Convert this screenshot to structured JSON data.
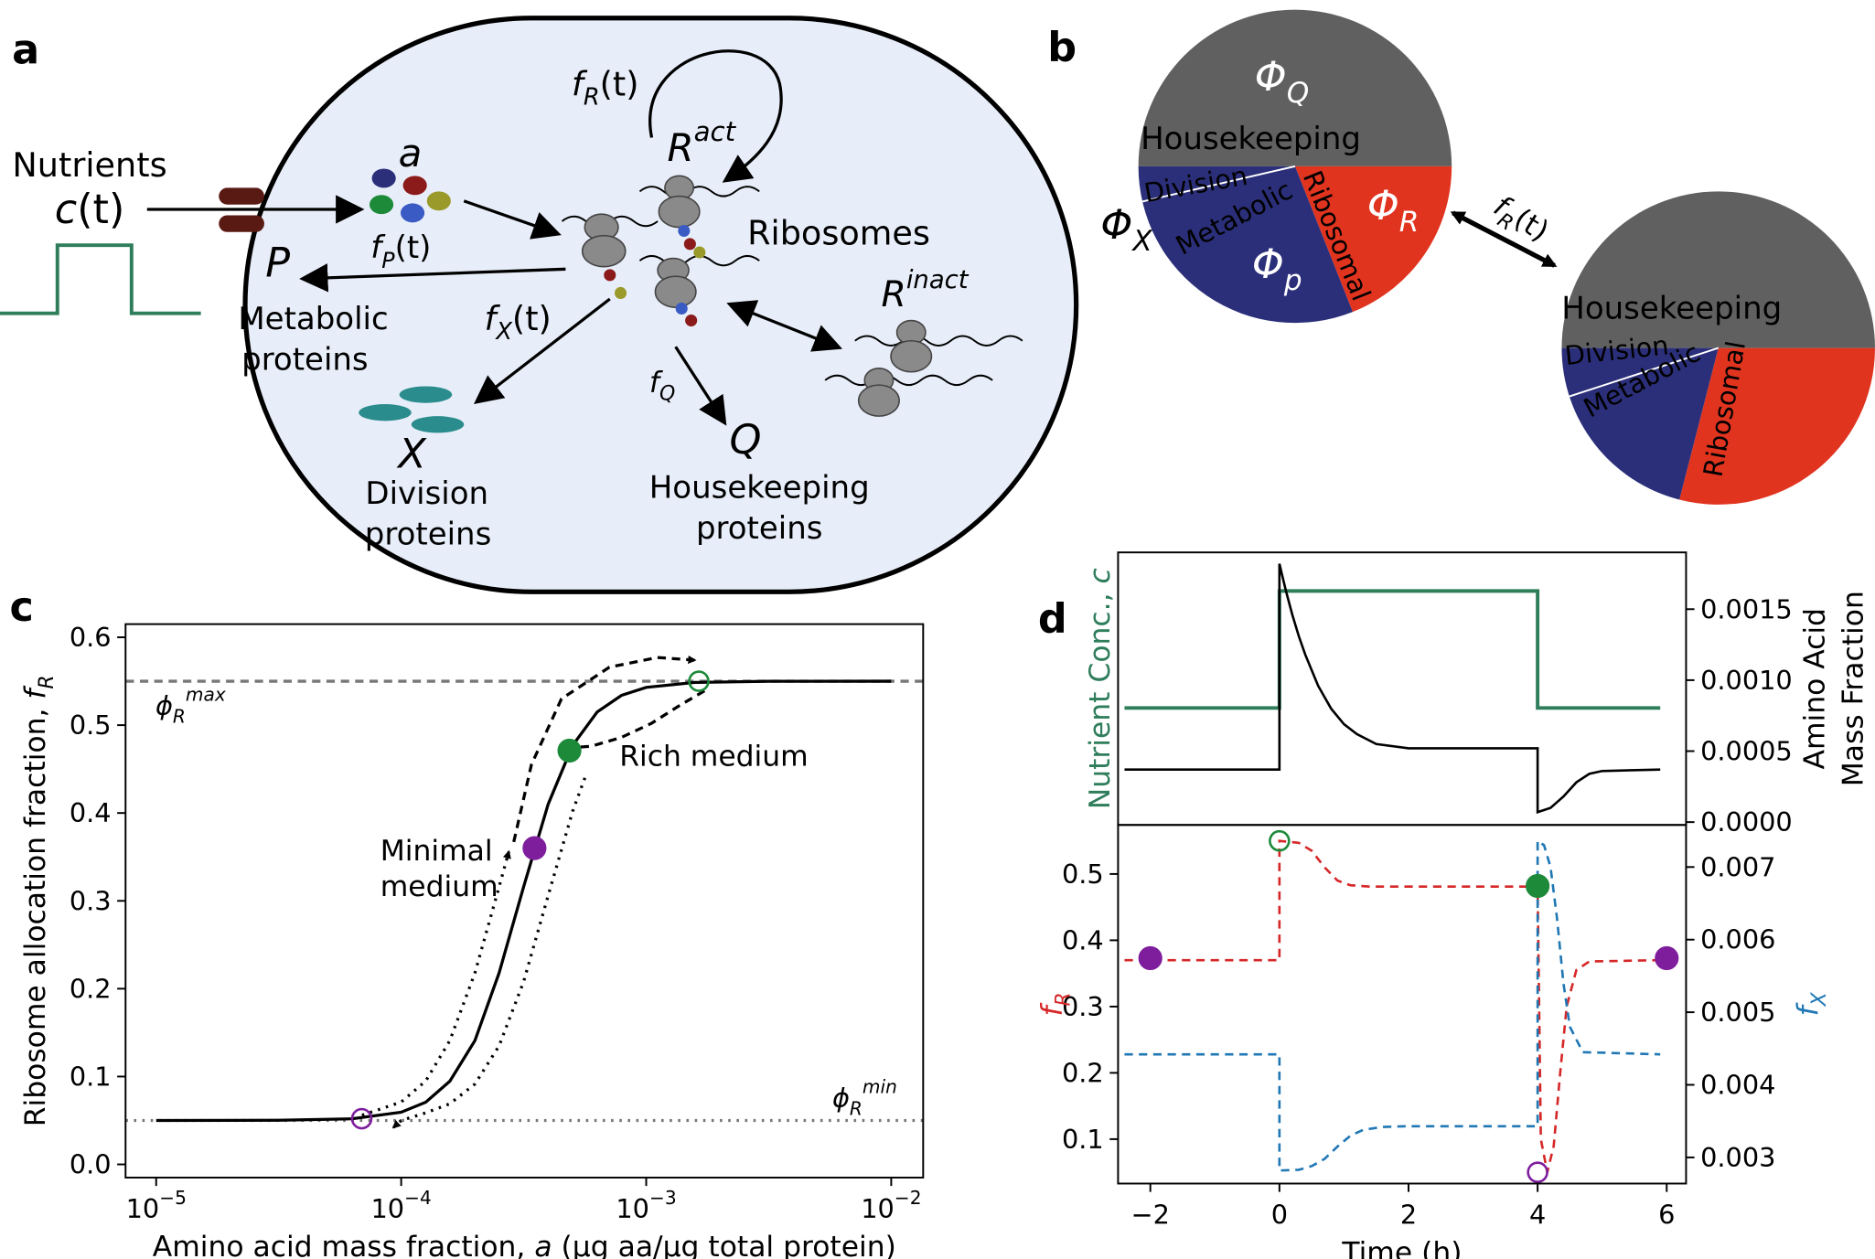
{
  "panel_labels": [
    "a",
    "b",
    "c",
    "d"
  ],
  "diagram": {
    "nutrients": "Nutrients",
    "c_t": {
      "var": "c",
      "tail": "(t)"
    },
    "amino": "a",
    "f_P": {
      "base": "f",
      "sub": "P",
      "tail": "(t)"
    },
    "P": "P",
    "metabolic": [
      "Metabolic",
      "proteins"
    ],
    "f_R": {
      "base": "f",
      "sub": "R",
      "tail": "(t)"
    },
    "R_act": {
      "base": "R",
      "sup": "act"
    },
    "ribosomes": "Ribosomes",
    "R_inact": {
      "base": "R",
      "sup": "inact"
    },
    "f_X": {
      "base": "f",
      "sub": "X",
      "tail": "(t)"
    },
    "X": "X",
    "division": [
      "Division",
      "proteins"
    ],
    "f_Q": {
      "base": "f",
      "sub": "Q"
    },
    "Q": "Q",
    "housekeeping": [
      "Housekeeping",
      "proteins"
    ],
    "transition": {
      "base": "f",
      "sub": "R",
      "tail": "(t)"
    }
  },
  "chart_data": [
    {
      "type": "pie",
      "categories": [
        "Housekeeping",
        "Ribosomal",
        "Metabolic"
      ],
      "values": [
        50,
        19,
        31
      ],
      "colors": [
        "#5f605f",
        "#e0341f",
        "#2b2f7a"
      ],
      "extra_label": "Division",
      "symbols": [
        {
          "base": "Φ",
          "sub": "Q"
        },
        {
          "base": "Φ",
          "sub": "R"
        },
        {
          "base": "Φ",
          "sub": "p"
        }
      ],
      "extra_symbol": {
        "base": "Φ",
        "sub": "X"
      }
    },
    {
      "type": "pie",
      "categories": [
        "Housekeeping",
        "Ribosomal",
        "Metabolic"
      ],
      "values": [
        50,
        29,
        21
      ],
      "colors": [
        "#5f605f",
        "#e0341f",
        "#2b2f7a"
      ],
      "extra_label": "Division"
    },
    {
      "type": "line",
      "log_x": true,
      "xlabel": {
        "text": "Amino acid mass fraction, ",
        "var": "a",
        "tail": " (μg aa/μg total protein)"
      },
      "ylabel": {
        "text": "Ribosome allocation fraction, ",
        "base": "f",
        "sub": "R"
      },
      "xlim": [
        7.5e-06,
        0.0135
      ],
      "ylim": [
        -0.015,
        0.615
      ],
      "xticks": [
        {
          "value": 1e-05,
          "label": "10−5"
        },
        {
          "value": 0.0001,
          "label": "10−4"
        },
        {
          "value": 0.001,
          "label": "10−3"
        },
        {
          "value": 0.01,
          "label": "10−2"
        }
      ],
      "yticks": [
        {
          "value": 0,
          "label": "0.0"
        },
        0.1,
        0.2,
        0.3,
        0.4,
        0.5,
        0.6
      ],
      "series": [
        {
          "color": "#000000",
          "style": "solid",
          "x": [
            1e-05,
            3.16e-05,
            6.31e-05,
            0.0001,
            0.000126,
            0.000158,
            0.0002,
            0.000251,
            0.000316,
            0.000398,
            0.000501,
            0.000631,
            0.000794,
            0.001,
            0.00158,
            0.00316,
            0.01
          ],
          "values": [
            0.05,
            0.0502,
            0.0519,
            0.0594,
            0.0708,
            0.0947,
            0.141,
            0.218,
            0.316,
            0.41,
            0.477,
            0.515,
            0.534,
            0.543,
            0.5486,
            0.5499,
            0.55
          ]
        },
        {
          "color": "#000000",
          "style": "dotted",
          "arrow_end": true,
          "x": [
            6.92e-05,
            0.0001,
            0.000126,
            0.000158,
            0.0002,
            0.000251,
            0.000275
          ],
          "values": [
            0.056,
            0.071,
            0.095,
            0.141,
            0.218,
            0.316,
            0.356
          ]
        },
        {
          "color": "#000000",
          "style": "dotted",
          "arrow_end": true,
          "x": [
            0.000562,
            0.000501,
            0.000398,
            0.000316,
            0.000251,
            0.0002,
            0.000158,
            0.000126,
            0.0001,
            9.3e-05
          ],
          "values": [
            0.44,
            0.402,
            0.306,
            0.208,
            0.135,
            0.0915,
            0.069,
            0.0587,
            0.05,
            0.042
          ]
        },
        {
          "color": "#000000",
          "style": "dashed",
          "arrow_end": true,
          "x": [
            0.000288,
            0.00034,
            0.000451,
            0.000708,
            0.00111,
            0.00158
          ],
          "values": [
            0.367,
            0.455,
            0.53,
            0.566,
            0.577,
            0.574
          ]
        },
        {
          "color": "#000000",
          "style": "dashed",
          "arrow_end": true,
          "x": [
            0.00173,
            0.00138,
            0.00105,
            0.000791,
            0.000597,
            0.000471
          ],
          "values": [
            0.539,
            0.523,
            0.502,
            0.486,
            0.476,
            0.474
          ]
        }
      ],
      "hlines": [
        {
          "value": 0.55,
          "style": "dashed",
          "color": "#777777",
          "label": {
            "base": "ϕ",
            "sub": "R",
            "sup": "max"
          }
        },
        {
          "value": 0.05,
          "style": "dotted",
          "color": "#777777",
          "label": {
            "base": "ϕ",
            "sub": "R",
            "sup": "min"
          }
        }
      ],
      "points": [
        {
          "x": 0.00035,
          "y": 0.36,
          "color": "#7e1e9c",
          "filled": true
        },
        {
          "x": 0.000486,
          "y": 0.471,
          "color": "#1d8a3a",
          "filled": true
        },
        {
          "x": 0.00164,
          "y": 0.55,
          "color": "#1d8a3a",
          "filled": false
        },
        {
          "x": 6.9e-05,
          "y": 0.052,
          "color": "#7e1e9c",
          "filled": false
        }
      ],
      "annotations": [
        "Rich medium",
        "Minimal",
        "medium"
      ]
    },
    {
      "type": "line",
      "ylabel": {
        "text": "Nutrient Conc., ",
        "var": "c"
      },
      "ylabel_color": "#2e7d5b",
      "y2label": [
        "Amino Acid",
        "Mass Fraction"
      ],
      "xlim": [
        -2.5,
        6.3
      ],
      "ylim": [
        0,
        2.33
      ],
      "y2lim": [
        -2e-05,
        0.0019
      ],
      "y2ticks": [
        {
          "value": 0,
          "label": "0.0000"
        },
        {
          "value": 0.0005,
          "label": "0.0005"
        },
        {
          "value": 0.001,
          "label": "0.0010"
        },
        {
          "value": 0.0015,
          "label": "0.0015"
        }
      ],
      "series": [
        {
          "color": "#2e7d5b",
          "style": "solid",
          "width": 3,
          "x": [
            -2.4,
            0,
            0,
            4,
            4,
            5.9
          ],
          "values": [
            1,
            1,
            2,
            2,
            1,
            1
          ]
        },
        {
          "color": "#000000",
          "style": "solid",
          "width": 2,
          "axis": "y2",
          "x": [
            -2.4,
            0,
            0,
            0.1,
            0.2,
            0.3,
            0.4,
            0.6,
            0.8,
            1.0,
            1.2,
            1.5,
            2,
            4,
            4,
            4.2,
            4.4,
            4.6,
            4.8,
            5,
            5.9
          ],
          "values": [
            0.00037,
            0.00037,
            0.00182,
            0.00163,
            0.00146,
            0.00131,
            0.00118,
            0.00096,
            0.0008,
            0.00069,
            0.00062,
            0.00055,
            0.00052,
            0.00052,
            7e-05,
            0.0001,
            0.00018,
            0.00028,
            0.00034,
            0.00036,
            0.00037
          ]
        }
      ]
    },
    {
      "type": "line",
      "xlabel": "Time (h)",
      "ylabel": {
        "base": "f",
        "sub": "R"
      },
      "ylabel_color": "#d62728",
      "ytick_color": "#d62728",
      "y2label": {
        "base": "f",
        "sub": "X"
      },
      "y2label_color": "#1f77b4",
      "y2tick_color": "#1f77b4",
      "xlim": [
        -2.5,
        6.3
      ],
      "ylim": [
        0.033,
        0.574
      ],
      "y2lim": [
        0.00264,
        0.00758
      ],
      "xticks": [
        {
          "value": -2,
          "label": "−2"
        },
        0,
        2,
        4,
        6
      ],
      "yticks": [
        0.1,
        0.2,
        0.3,
        0.4,
        0.5
      ],
      "y2ticks": [
        0.003,
        0.004,
        0.005,
        0.006,
        0.007
      ],
      "series": [
        {
          "color": "#d62728",
          "style": "dashed",
          "width": 2,
          "x": [
            -2.4,
            0,
            0,
            0.3,
            0.5,
            0.7,
            0.9,
            1.1,
            1.4,
            2,
            4,
            4.05,
            4.15,
            4.25,
            4.35,
            4.45,
            4.6,
            4.8,
            5.9
          ],
          "values": [
            0.37,
            0.37,
            0.55,
            0.547,
            0.535,
            0.51,
            0.49,
            0.483,
            0.481,
            0.481,
            0.481,
            0.1,
            0.05,
            0.09,
            0.2,
            0.3,
            0.355,
            0.368,
            0.37
          ]
        },
        {
          "color": "#1f77b4",
          "style": "dashed",
          "width": 2,
          "axis": "y2",
          "x": [
            -2.4,
            0,
            0,
            0.3,
            0.5,
            0.7,
            0.9,
            1.1,
            1.3,
            1.6,
            2,
            4,
            4,
            4.1,
            4.2,
            4.3,
            4.4,
            4.5,
            4.7,
            5.9
          ],
          "values": [
            0.00442,
            0.00442,
            0.00282,
            0.00283,
            0.00288,
            0.00298,
            0.00315,
            0.0033,
            0.00338,
            0.00342,
            0.00343,
            0.00343,
            0.00736,
            0.0073,
            0.007,
            0.0063,
            0.0054,
            0.0048,
            0.00445,
            0.00442
          ]
        }
      ],
      "points": [
        {
          "x": -2,
          "y": 0.373,
          "color": "#7e1e9c",
          "filled": true
        },
        {
          "x": 6,
          "y": 0.373,
          "color": "#7e1e9c",
          "filled": true
        },
        {
          "x": 4,
          "y": 0.482,
          "color": "#1d8a3a",
          "filled": true
        },
        {
          "x": 0,
          "y": 0.55,
          "color": "#1d8a3a",
          "filled": false
        },
        {
          "x": 4,
          "y": 0.05,
          "color": "#7e1e9c",
          "filled": false
        }
      ]
    }
  ]
}
